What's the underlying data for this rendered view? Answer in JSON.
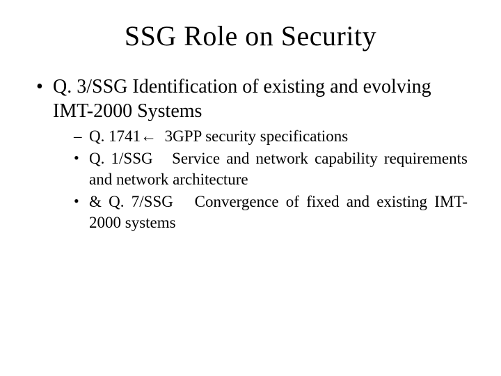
{
  "title": "SSG Role on Security",
  "bullets": {
    "main": "Q. 3/SSG Identification of existing and evolving IMT-2000 Systems",
    "sub1": "Q. 1741ß  3GPP security specifications",
    "sub2": "Q. 1/SSG   Service and network capability requirements and network architecture",
    "sub3": "& Q. 7/SSG   Convergence of fixed and existing IMT-2000 systems"
  },
  "styling": {
    "background_color": "#ffffff",
    "text_color": "#000000",
    "font_family": "Times New Roman",
    "title_fontsize": 40,
    "level1_fontsize": 28,
    "level2_fontsize": 23,
    "slide_width": 720,
    "slide_height": 540
  }
}
